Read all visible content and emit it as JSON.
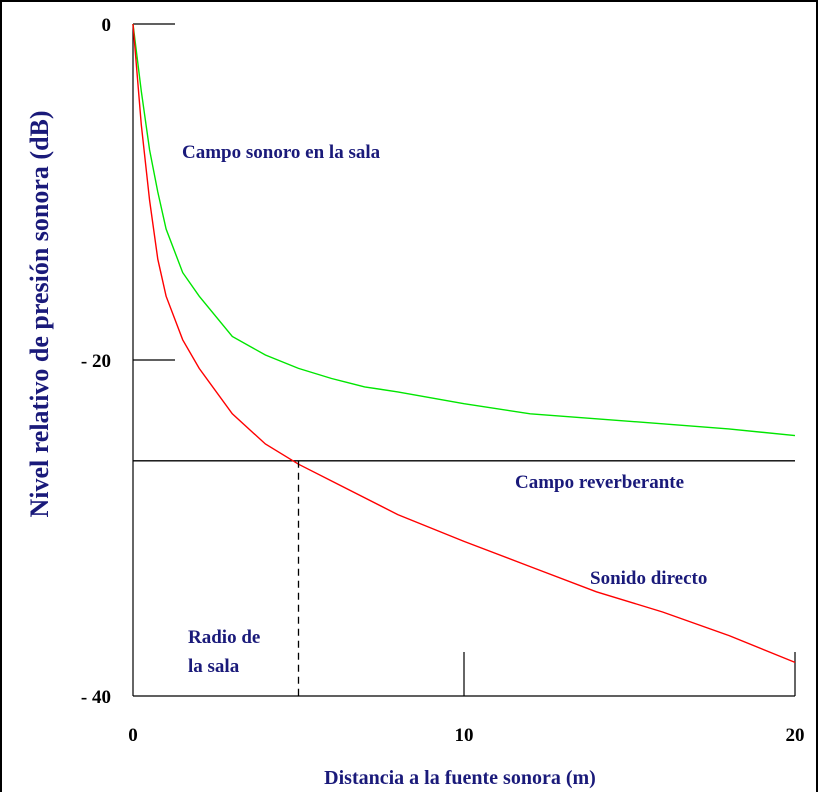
{
  "chart_data": {
    "type": "line",
    "title": "",
    "xlabel": "Distancia a la fuente sonora (m)",
    "ylabel": "Nivel relativo de presión sonora (dB)",
    "xlim": [
      0,
      20
    ],
    "ylim": [
      -40,
      0
    ],
    "x_ticks": [
      "0",
      "10",
      "20"
    ],
    "y_ticks": [
      "0",
      "- 20",
      "- 40"
    ],
    "grid": false,
    "colors": {
      "campo_sonoro": "#00e600",
      "sonido_directo": "#ff0000",
      "campo_reverberante": "#000000",
      "text": "#1a1a7a"
    },
    "series": [
      {
        "name": "Campo sonoro en la sala",
        "x": [
          0,
          0.25,
          0.5,
          0.75,
          1,
          1.5,
          2,
          3,
          4,
          5,
          6,
          7,
          8,
          10,
          12,
          14,
          16,
          18,
          20
        ],
        "y": [
          0,
          -4.0,
          -7.5,
          -10.0,
          -12.2,
          -14.8,
          -16.2,
          -18.6,
          -19.7,
          -20.5,
          -21.1,
          -21.6,
          -21.9,
          -22.6,
          -23.2,
          -23.5,
          -23.8,
          -24.1,
          -24.5
        ]
      },
      {
        "name": "Sonido directo",
        "x": [
          0,
          0.25,
          0.5,
          0.75,
          1,
          1.5,
          2,
          3,
          4,
          5,
          6,
          8,
          10,
          12,
          14,
          16,
          18,
          20
        ],
        "y": [
          0,
          -6.0,
          -10.5,
          -14.0,
          -16.2,
          -18.8,
          -20.5,
          -23.2,
          -25.0,
          -26.2,
          -27.2,
          -29.2,
          -30.8,
          -32.3,
          -33.8,
          -35.0,
          -36.4,
          -38.0
        ]
      },
      {
        "name": "Campo reverberante",
        "x": [
          0,
          20
        ],
        "y": [
          -26,
          -26
        ]
      }
    ],
    "annotations": [
      {
        "id": "campo_sonoro",
        "text": "Campo sonoro en la sala"
      },
      {
        "id": "reverberante",
        "text": "Campo reverberante"
      },
      {
        "id": "directo",
        "text": "Sonido directo"
      },
      {
        "id": "radio1",
        "text": "Radio de"
      },
      {
        "id": "radio2",
        "text": "la sala"
      }
    ],
    "radio_de_la_sala_m": 5
  }
}
